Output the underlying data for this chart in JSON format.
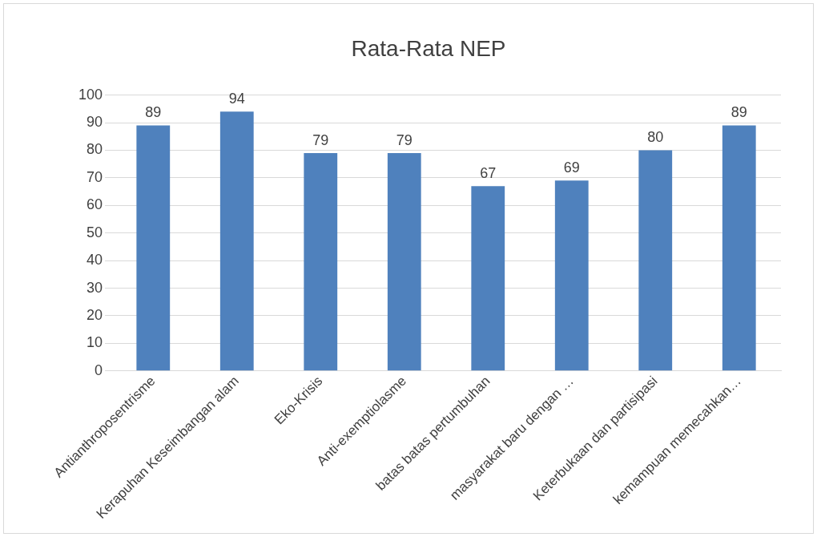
{
  "chart_data": {
    "type": "bar",
    "title": "Rata-Rata NEP",
    "categories": [
      "Antianthroposentrisme",
      "Kerapuhan Keseimbangan alam",
      "Eko-Krisis",
      "Anti-exemptiolasme",
      "batas batas pertumbuhan",
      "masyarakat baru dengan …",
      "Keterbukaan dan partisipasi",
      "kemampuan memecahkan…"
    ],
    "values": [
      89,
      94,
      79,
      79,
      67,
      69,
      80,
      89
    ],
    "color": "#4f81bd",
    "ylim": [
      0,
      100
    ],
    "yticks": [
      0,
      10,
      20,
      30,
      40,
      50,
      60,
      70,
      80,
      90,
      100
    ],
    "grid": "y",
    "data_labels": true
  }
}
